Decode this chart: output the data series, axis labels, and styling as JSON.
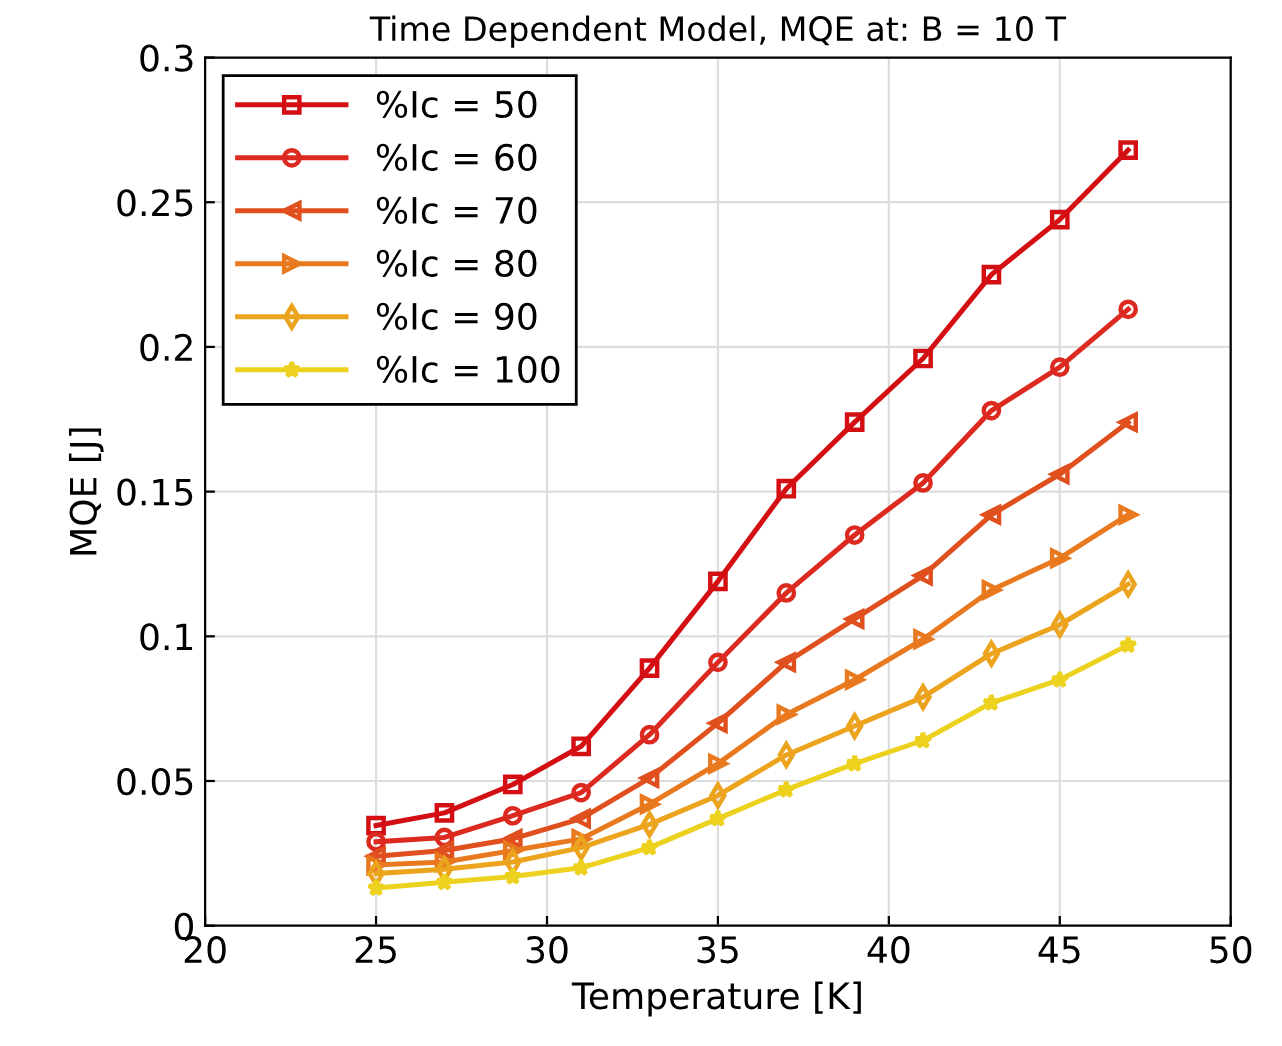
{
  "chart_data": {
    "type": "line",
    "title": "Time Dependent Model, MQE at: B = 10 T",
    "xlabel": "Temperature [K]",
    "ylabel": "MQE [J]",
    "x": [
      25,
      27,
      29,
      31,
      33,
      35,
      37,
      39,
      41,
      43,
      45,
      47
    ],
    "xlim": [
      20,
      50
    ],
    "xticks": [
      20,
      25,
      30,
      35,
      40,
      45,
      50
    ],
    "ylim": [
      0,
      0.3
    ],
    "yticks": [
      0,
      0.05,
      0.1,
      0.15,
      0.2,
      0.25,
      0.3
    ],
    "grid": true,
    "legend": "top left",
    "line_style": "solid",
    "series": [
      {
        "name": "%Ic = 50",
        "color": "#d40f14",
        "marker": "square",
        "values": [
          0.0346,
          0.039,
          0.0488,
          0.062,
          0.089,
          0.119,
          0.151,
          0.174,
          0.196,
          0.225,
          0.244,
          0.268
        ]
      },
      {
        "name": "%Ic = 60",
        "color": "#dc2a20",
        "marker": "circle",
        "values": [
          0.029,
          0.0305,
          0.038,
          0.046,
          0.066,
          0.091,
          0.115,
          0.135,
          0.153,
          0.178,
          0.193,
          0.213
        ]
      },
      {
        "name": "%Ic = 70",
        "color": "#e0501e",
        "marker": "triangle-left",
        "values": [
          0.024,
          0.026,
          0.03,
          0.037,
          0.051,
          0.07,
          0.091,
          0.106,
          0.121,
          0.142,
          0.156,
          0.174
        ]
      },
      {
        "name": "%Ic = 80",
        "color": "#e8791e",
        "marker": "triangle-right",
        "values": [
          0.021,
          0.022,
          0.026,
          0.03,
          0.042,
          0.056,
          0.073,
          0.085,
          0.099,
          0.116,
          0.127,
          0.142
        ]
      },
      {
        "name": "%Ic = 90",
        "color": "#eca41e",
        "marker": "diamond",
        "values": [
          0.018,
          0.0195,
          0.022,
          0.027,
          0.035,
          0.045,
          0.059,
          0.069,
          0.079,
          0.094,
          0.104,
          0.118
        ]
      },
      {
        "name": "%Ic = 100",
        "color": "#ecd21e",
        "marker": "star",
        "values": [
          0.013,
          0.015,
          0.017,
          0.02,
          0.027,
          0.037,
          0.047,
          0.056,
          0.064,
          0.077,
          0.085,
          0.097
        ]
      }
    ]
  }
}
